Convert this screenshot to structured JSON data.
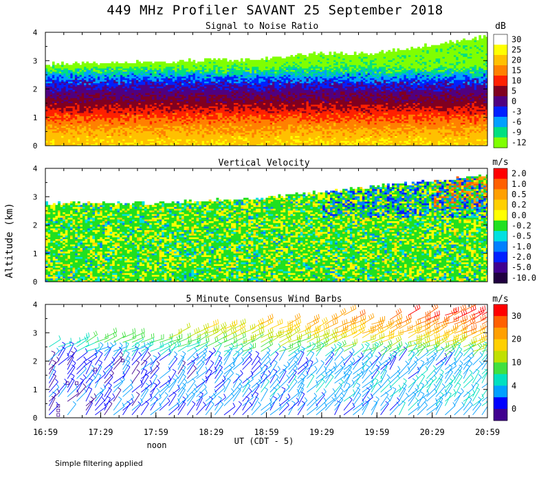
{
  "title": "449 MHz Profiler SAVANT 25 September 2018",
  "y_axis_label": "Altitude (km)",
  "footnote": "Simple filtering applied",
  "chart_data": [
    {
      "type": "heatmap",
      "title": "Signal to Noise Ratio",
      "ylabel": "Altitude (km)",
      "ylim": [
        0,
        4
      ],
      "yticks": [
        "0",
        "1",
        "2",
        "3",
        "4"
      ],
      "colorbar_unit": "dB",
      "colorbar_labels": [
        "30",
        "25",
        "20",
        "15",
        "10",
        "5",
        "0",
        "-3",
        "-6",
        "-9",
        "-12"
      ],
      "colorbar_colors": [
        "#ffffff",
        "#ffff00",
        "#ffc000",
        "#ff8000",
        "#ff2000",
        "#800020",
        "#500080",
        "#0020ff",
        "#00a0ff",
        "#00e080",
        "#80ff00"
      ],
      "xlim": [
        "16:59",
        "20:59"
      ],
      "mean_profile": [
        {
          "alt": 0.2,
          "value": 24
        },
        {
          "alt": 0.6,
          "value": 20
        },
        {
          "alt": 1.0,
          "value": 15
        },
        {
          "alt": 1.5,
          "value": 8
        },
        {
          "alt": 2.0,
          "value": 2
        },
        {
          "alt": 2.4,
          "value": -3
        },
        {
          "alt": 2.7,
          "value": -8
        },
        {
          "alt": 2.9,
          "value": -11
        }
      ],
      "echo_top_km": [
        {
          "time": "16:59",
          "value": 2.9
        },
        {
          "time": "17:59",
          "value": 3.0
        },
        {
          "time": "18:59",
          "value": 3.1
        },
        {
          "time": "19:29",
          "value": 3.3
        },
        {
          "time": "19:59",
          "value": 3.3
        },
        {
          "time": "20:29",
          "value": 3.6
        },
        {
          "time": "20:59",
          "value": 3.9
        }
      ]
    },
    {
      "type": "heatmap",
      "title": "Vertical Velocity",
      "ylabel": "Altitude (km)",
      "ylim": [
        0,
        4
      ],
      "yticks": [
        "0",
        "1",
        "2",
        "3",
        "4"
      ],
      "colorbar_unit": "m/s",
      "colorbar_labels": [
        "2.0",
        "1.0",
        "0.5",
        "0.2",
        "0.0",
        "-0.2",
        "-0.5",
        "-1.0",
        "-2.0",
        "-5.0",
        "-10.0"
      ],
      "colorbar_colors": [
        "#ff0000",
        "#ff6000",
        "#ffa000",
        "#ffd000",
        "#ffff00",
        "#20e020",
        "#00e0e0",
        "#0080ff",
        "#0020ff",
        "#400090",
        "#200040"
      ],
      "xlim": [
        "16:59",
        "20:59"
      ],
      "mean_value_m_s": -0.2,
      "echo_top_km": [
        {
          "time": "16:59",
          "value": 2.8
        },
        {
          "time": "17:59",
          "value": 2.8
        },
        {
          "time": "18:59",
          "value": 3.0
        },
        {
          "time": "19:29",
          "value": 3.2
        },
        {
          "time": "19:59",
          "value": 3.4
        },
        {
          "time": "20:29",
          "value": 3.6
        },
        {
          "time": "20:59",
          "value": 3.8
        }
      ]
    },
    {
      "type": "scatter",
      "title": "5 Minute Consensus Wind Barbs",
      "ylabel": "Altitude (km)",
      "ylim": [
        0,
        4
      ],
      "yticks": [
        "0",
        "1",
        "2",
        "3",
        "4"
      ],
      "colorbar_unit": "m/s",
      "colorbar_labels": [
        "30",
        "20",
        "10",
        "4",
        "0"
      ],
      "colorbar_colors": [
        "#ff0000",
        "#ff6000",
        "#ffa000",
        "#ffd000",
        "#c0e000",
        "#40e040",
        "#00e0c0",
        "#00a0ff",
        "#0000ff",
        "#400090"
      ],
      "xlim": [
        "16:59",
        "20:59"
      ],
      "xticks": [
        "16:59",
        "17:29",
        "17:59",
        "18:29",
        "18:59",
        "19:29",
        "19:59",
        "20:29",
        "20:59"
      ],
      "xlabel": "UT (CDT - 5)",
      "x_annotation": {
        "text": "noon",
        "time": "17:59"
      },
      "speed_profile": [
        {
          "alt": 0.3,
          "value": 3
        },
        {
          "alt": 1.0,
          "value": 4
        },
        {
          "alt": 1.5,
          "value": 3
        },
        {
          "alt": 2.0,
          "value": 3
        },
        {
          "alt": 2.5,
          "value": 10
        },
        {
          "alt": 3.0,
          "value": 16
        },
        {
          "alt": 3.5,
          "value": 20
        }
      ]
    }
  ]
}
